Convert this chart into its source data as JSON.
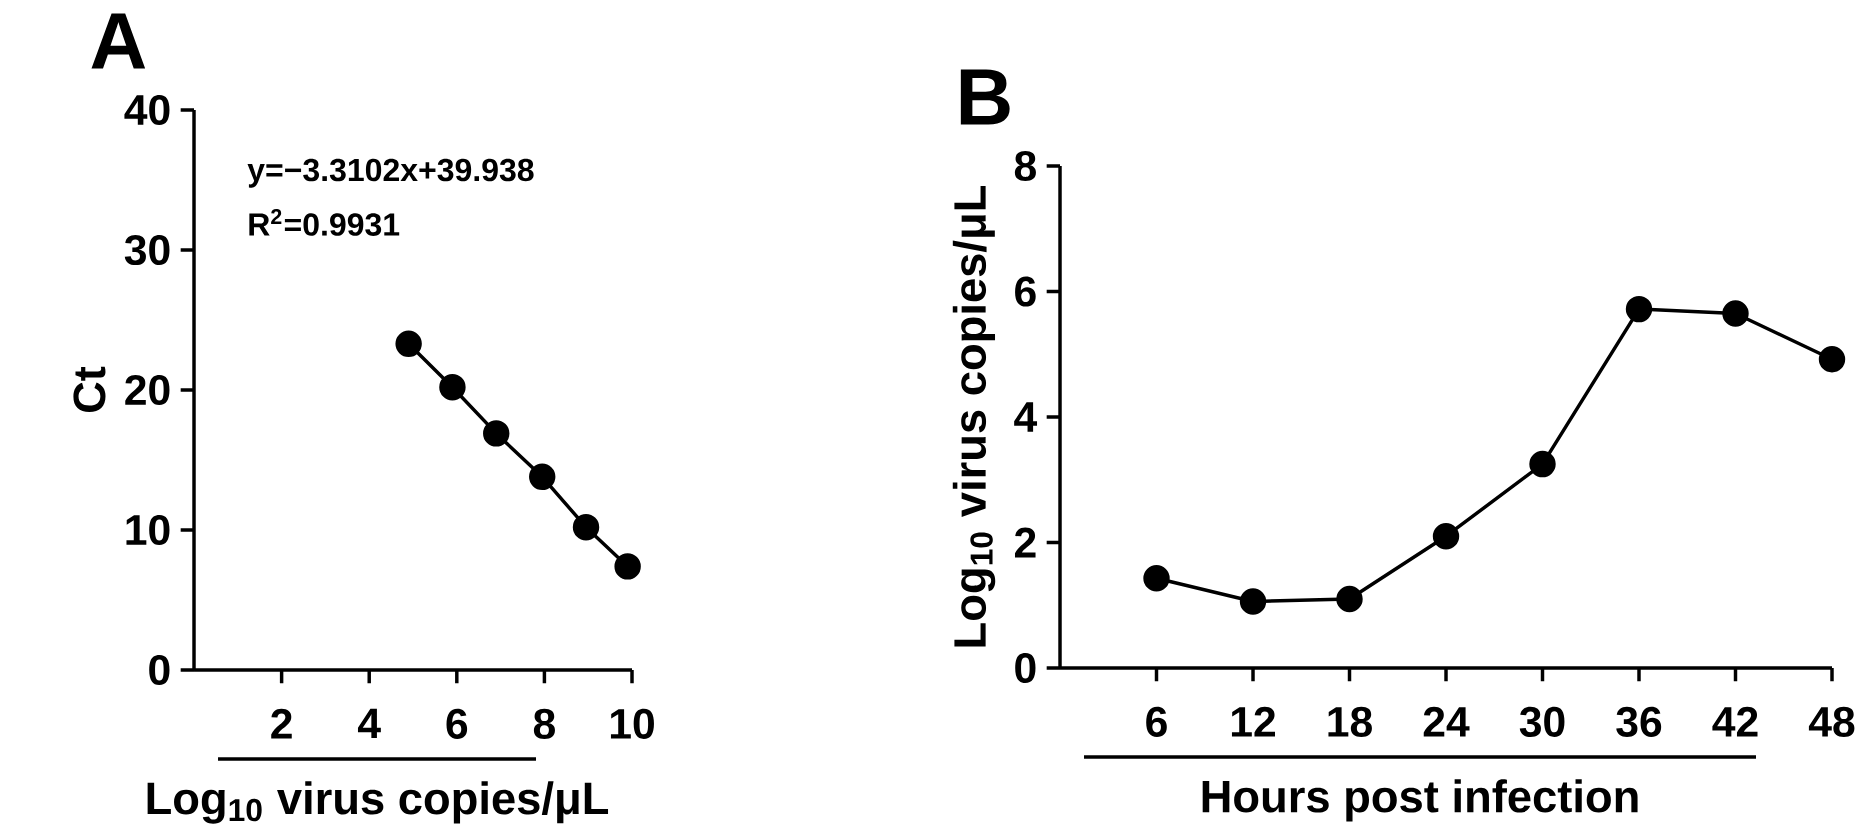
{
  "chart_data": [
    {
      "type": "line",
      "title": "A",
      "xlabel": "Log$_{10}$ virus copies/μL",
      "ylabel": "Ct",
      "x": [
        4.9,
        5.9,
        6.9,
        7.95,
        8.95,
        9.9
      ],
      "marker": "circle",
      "line_style": "solid",
      "xlim": [
        0,
        10
      ],
      "xticks": [
        2,
        4,
        6,
        8,
        10
      ],
      "ylim": [
        0,
        40
      ],
      "yticks": [
        0,
        10,
        20,
        30,
        40
      ],
      "annotations": [
        "y=−3.3102x+39.938",
        "R$^{2}$=0.9931"
      ],
      "series": [
        {
          "color": "#000000",
          "values": [
            23.3,
            20.2,
            16.9,
            13.8,
            10.2,
            7.4
          ]
        }
      ]
    },
    {
      "type": "line",
      "title": "B",
      "xlabel": "Hours post infection",
      "ylabel": "Log$_{10}$ virus copies/μL",
      "x": [
        6,
        12,
        18,
        24,
        30,
        36,
        42,
        48
      ],
      "marker": "circle",
      "line_style": "solid",
      "xlim": [
        0,
        48
      ],
      "xticks": [
        6,
        12,
        18,
        24,
        30,
        36,
        42,
        48
      ],
      "ylim": [
        0,
        8
      ],
      "yticks": [
        0,
        2,
        4,
        6,
        8
      ],
      "series": [
        {
          "color": "#000000",
          "values": [
            1.43,
            1.06,
            1.1,
            2.1,
            3.25,
            5.72,
            5.65,
            4.92
          ]
        }
      ]
    }
  ]
}
